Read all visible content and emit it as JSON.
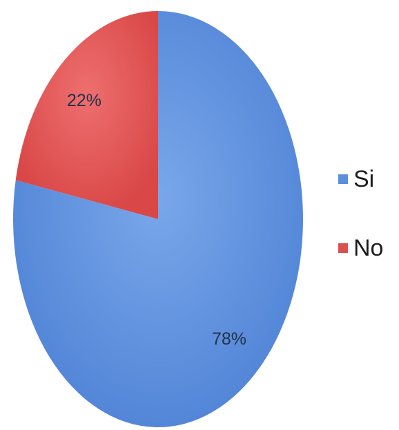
{
  "chart_data": {
    "type": "pie",
    "categories": [
      "Si",
      "No"
    ],
    "values": [
      78,
      22
    ],
    "labels": [
      "78%",
      "22%"
    ],
    "colors": [
      "#5b8fdc",
      "#dc4f4f"
    ],
    "legend": {
      "position": "right"
    }
  }
}
